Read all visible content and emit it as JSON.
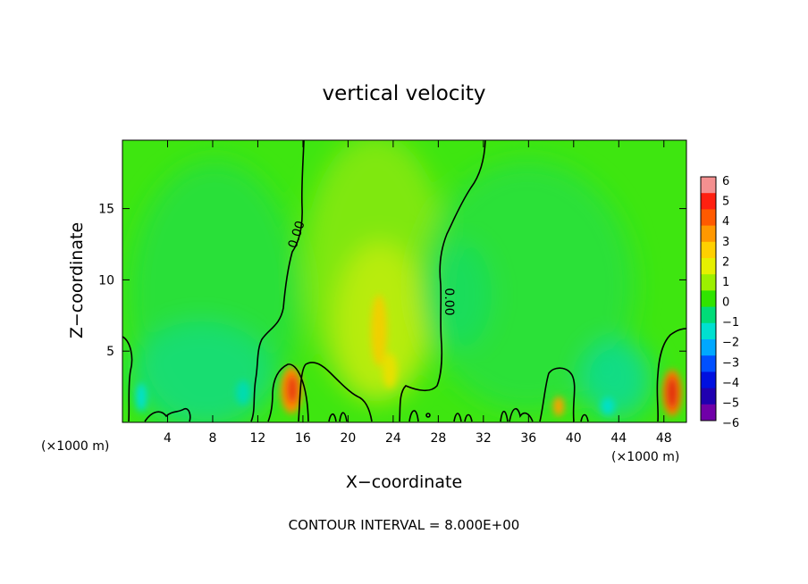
{
  "chart_data": {
    "type": "heatmap",
    "title": "vertical velocity",
    "xlabel": "X−coordinate",
    "ylabel": "Z−coordinate",
    "x_unit_left": "(×1000 m)",
    "x_unit_right": "(×1000 m)",
    "xlim": [
      0,
      50
    ],
    "ylim": [
      0,
      19.8
    ],
    "x_ticks": [
      4,
      8,
      12,
      16,
      20,
      24,
      28,
      32,
      36,
      40,
      44,
      48
    ],
    "y_ticks": [
      5,
      10,
      15
    ],
    "colorbar": {
      "ticks": [
        "6",
        "5",
        "4",
        "3",
        "2",
        "1",
        "0",
        "−1",
        "−2",
        "−3",
        "−4",
        "−5",
        "−6"
      ],
      "colors": [
        "#f49090",
        "#ff2010",
        "#ff5a00",
        "#ff9800",
        "#ffd000",
        "#e6f000",
        "#9cf000",
        "#30e400",
        "#00dc78",
        "#00e0d0",
        "#00a8ff",
        "#0050ff",
        "#0010e0",
        "#2000b0",
        "#7000a8"
      ]
    },
    "contour_labels": [
      "0.00",
      "0.00"
    ],
    "contour_level": 0,
    "footer": "CONTOUR INTERVAL = 8.000E+00"
  }
}
